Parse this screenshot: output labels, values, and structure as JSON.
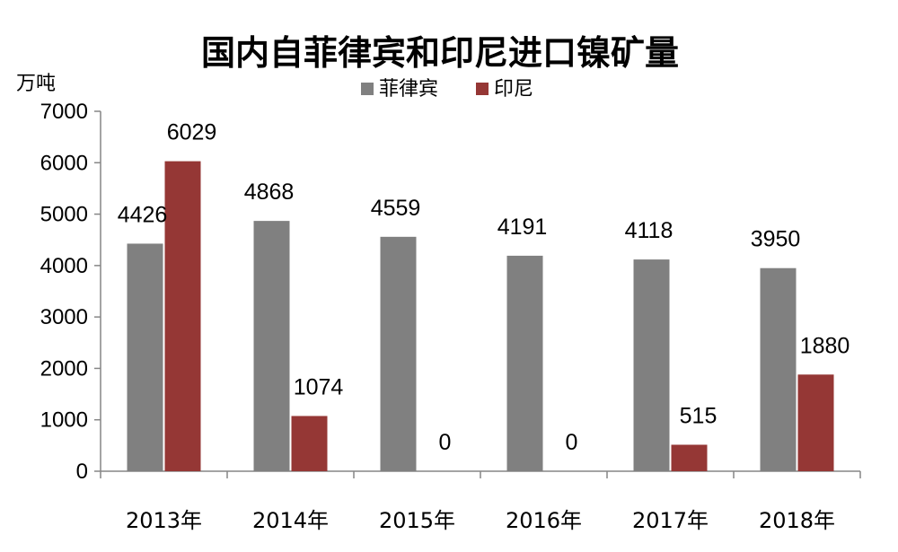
{
  "chart_data": {
    "type": "bar",
    "title": "国内自菲律宾和印尼进口镍矿量",
    "unit_label": "万吨",
    "categories": [
      "2013年",
      "2014年",
      "2015年",
      "2016年",
      "2017年",
      "2018年"
    ],
    "series": [
      {
        "name": "菲律宾",
        "color": "#808080",
        "values": [
          4426,
          4868,
          4559,
          4191,
          4118,
          3950
        ]
      },
      {
        "name": "印尼",
        "color": "#953735",
        "values": [
          6029,
          1074,
          0,
          0,
          515,
          1880
        ]
      }
    ],
    "ylim": [
      0,
      7000
    ],
    "yticks": [
      0,
      1000,
      2000,
      3000,
      4000,
      5000,
      6000,
      7000
    ],
    "grid": false,
    "legend_position": "top-center"
  }
}
